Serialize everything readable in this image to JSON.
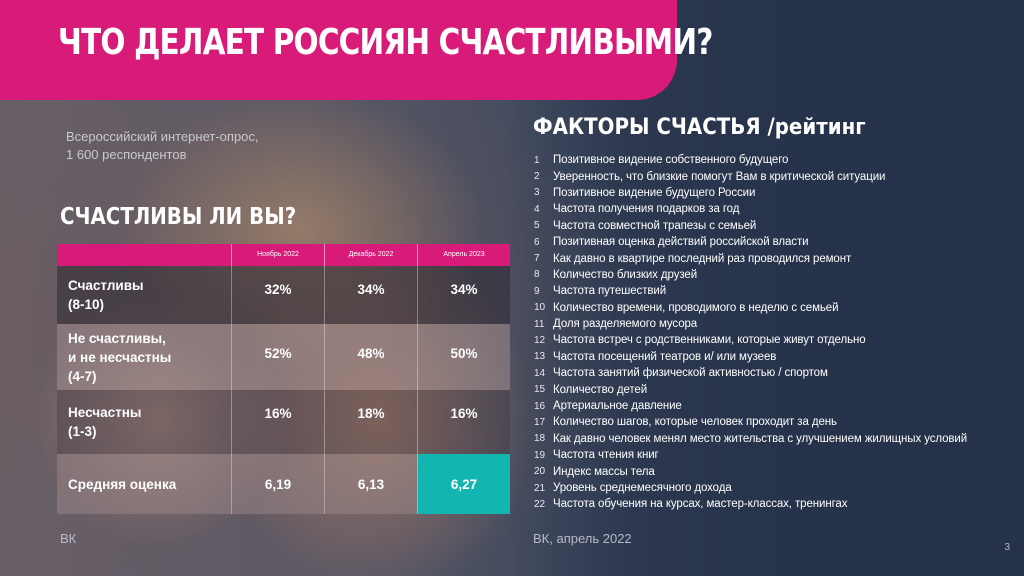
{
  "title": "ЧТО ДЕЛАЕТ РОССИЯН СЧАСТЛИВЫМИ?",
  "survey_info": {
    "line1": "Всероссийский интернет-опрос,",
    "line2": "1 600 респондентов"
  },
  "happiness": {
    "title": "СЧАСТЛИВЫ ЛИ ВЫ?",
    "columns": [
      "Ноябрь 2022",
      "Декабрь 2022",
      "Апрель 2023"
    ],
    "rows": [
      {
        "label_lines": [
          "Счастливы",
          "(8-10)"
        ],
        "values": [
          "32%",
          "34%",
          "34%"
        ]
      },
      {
        "label_lines": [
          "Не счастливы,",
          "и не несчастны",
          "(4-7)"
        ],
        "values": [
          "52%",
          "48%",
          "50%"
        ]
      },
      {
        "label_lines": [
          "Несчастны",
          "(1-3)"
        ],
        "values": [
          "16%",
          "18%",
          "16%"
        ]
      },
      {
        "label_lines": [
          "Средняя оценка"
        ],
        "values": [
          "6,19",
          "6,13",
          "6,27"
        ]
      }
    ],
    "highlight_color": "#13b5b1",
    "source": "ВК"
  },
  "factors": {
    "title": "ФАКТОРЫ СЧАСТЬЯ /рейтинг",
    "items": [
      {
        "num": "1",
        "text": "Позитивное видение собственного будущего"
      },
      {
        "num": "2",
        "text": "Уверенность, что близкие помогут Вам в критической ситуации"
      },
      {
        "num": "3",
        "text": "Позитивное видение будущего России"
      },
      {
        "num": "4",
        "text": "Частота получения подарков за год"
      },
      {
        "num": "5",
        "text": "Частота совместной трапезы с семьей"
      },
      {
        "num": "6",
        "text": "Позитивная оценка действий российской власти"
      },
      {
        "num": "7",
        "text": "Как давно в квартире последний раз проводился ремонт"
      },
      {
        "num": "8",
        "text": "Количество близких друзей"
      },
      {
        "num": "9",
        "text": "Частота путешествий"
      },
      {
        "num": "10",
        "text": "Количество времени, проводимого в неделю с семьей"
      },
      {
        "num": "11",
        "text": "Доля разделяемого мусора"
      },
      {
        "num": "12",
        "text": "Частота встреч с родственниками, которые живут отдельно"
      },
      {
        "num": "13",
        "text": "Частота посещений театров и/ или музеев"
      },
      {
        "num": "14",
        "text": "Частота занятий физической активностью / спортом"
      },
      {
        "num": "15",
        "text": "Количество детей"
      },
      {
        "num": "16",
        "text": "Артериальное давление"
      },
      {
        "num": "17",
        "text": "Количество шагов, которые человек проходит за день"
      },
      {
        "num": "18",
        "text": "Как давно человек менял место жительства с улучшением жилищных условий"
      },
      {
        "num": "19",
        "text": "Частота чтения книг"
      },
      {
        "num": "20",
        "text": "Индекс массы тела"
      },
      {
        "num": "21",
        "text": "Уровень среднемесячного дохода"
      },
      {
        "num": "22",
        "text": "Частота обучения на курсах, мастер-классах, тренингах"
      }
    ],
    "source": "ВК, апрель 2022"
  },
  "page_number": "3",
  "colors": {
    "accent": "#d81b78",
    "highlight": "#13b5b1"
  }
}
